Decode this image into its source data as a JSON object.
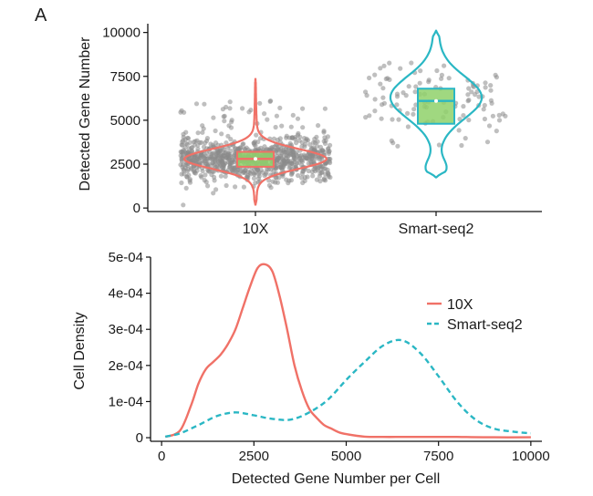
{
  "panel_label": "A",
  "chart_data": [
    {
      "type": "violin",
      "xlabel": "",
      "ylabel": "Detected Gene Number",
      "categories": [
        "10X",
        "Smart-seq2"
      ],
      "ylim": [
        -200,
        10500
      ],
      "yticks": [
        0,
        2500,
        5000,
        7500,
        10000
      ],
      "ytick_labels": [
        "0",
        "2500",
        "5000",
        "7500",
        "10000"
      ],
      "jitter_points": true,
      "groups": [
        {
          "name": "10X",
          "color": "#f07167",
          "min": 150,
          "max": 7400,
          "q1": 2350,
          "median": 2800,
          "q3": 3200,
          "n_points_approx": 900
        },
        {
          "name": "Smart-seq2",
          "color": "#2ab7c4",
          "min": 1750,
          "max": 10100,
          "q1": 4800,
          "median": 6100,
          "q3": 6800,
          "n_points_approx": 110
        }
      ],
      "box_fill": "#8fd16a"
    },
    {
      "type": "line",
      "xlabel": "Detected Gene Number per Cell",
      "ylabel": "Cell Density",
      "xlim": [
        -300,
        10300
      ],
      "ylim": [
        -1e-05,
        0.0005
      ],
      "xticks": [
        0,
        2500,
        5000,
        7500,
        10000
      ],
      "xtick_labels": [
        "0",
        "2500",
        "5000",
        "7500",
        "10000"
      ],
      "yticks": [
        0,
        0.0001,
        0.0002,
        0.0003,
        0.0004,
        0.0005
      ],
      "ytick_labels": [
        "0",
        "1e-04",
        "2e-04",
        "3e-04",
        "4e-04",
        "5e-04"
      ],
      "legend_position": "right",
      "series": [
        {
          "name": "10X",
          "color": "#f07167",
          "dash": "solid",
          "x": [
            100,
            500,
            800,
            1000,
            1200,
            1400,
            1600,
            1800,
            2000,
            2200,
            2400,
            2600,
            2800,
            3000,
            3200,
            3400,
            3600,
            3800,
            4000,
            4200,
            4400,
            4600,
            4800,
            5000,
            5500,
            6000,
            6500,
            7000,
            7500,
            8000,
            9000,
            10000
          ],
          "y": [
            2e-06,
            2e-05,
            9e-05,
            0.00015,
            0.00019,
            0.00021,
            0.00023,
            0.00026,
            0.0003,
            0.00036,
            0.00042,
            0.00047,
            0.00048,
            0.00046,
            0.00039,
            0.0003,
            0.0002,
            0.00013,
            8e-05,
            5.5e-05,
            3.5e-05,
            2.5e-05,
            1.5e-05,
            1e-05,
            3e-06,
            2e-06,
            2e-06,
            2e-06,
            2e-06,
            2e-06,
            1e-06,
            1e-06
          ]
        },
        {
          "name": "Smart-seq2",
          "color": "#2ab7c4",
          "dash": "dashed",
          "x": [
            100,
            500,
            1000,
            1500,
            2000,
            2500,
            3000,
            3500,
            4000,
            4500,
            5000,
            5500,
            6000,
            6500,
            7000,
            7500,
            8000,
            8500,
            9000,
            9500,
            10000
          ],
          "y": [
            3e-06,
            1.2e-05,
            3.5e-05,
            6e-05,
            7e-05,
            6.2e-05,
            5.2e-05,
            5e-05,
            7e-05,
            0.000105,
            0.00016,
            0.00021,
            0.000255,
            0.00027,
            0.000235,
            0.00017,
            0.0001,
            5e-05,
            2.5e-05,
            1.7e-05,
            1.2e-05
          ]
        }
      ]
    }
  ]
}
